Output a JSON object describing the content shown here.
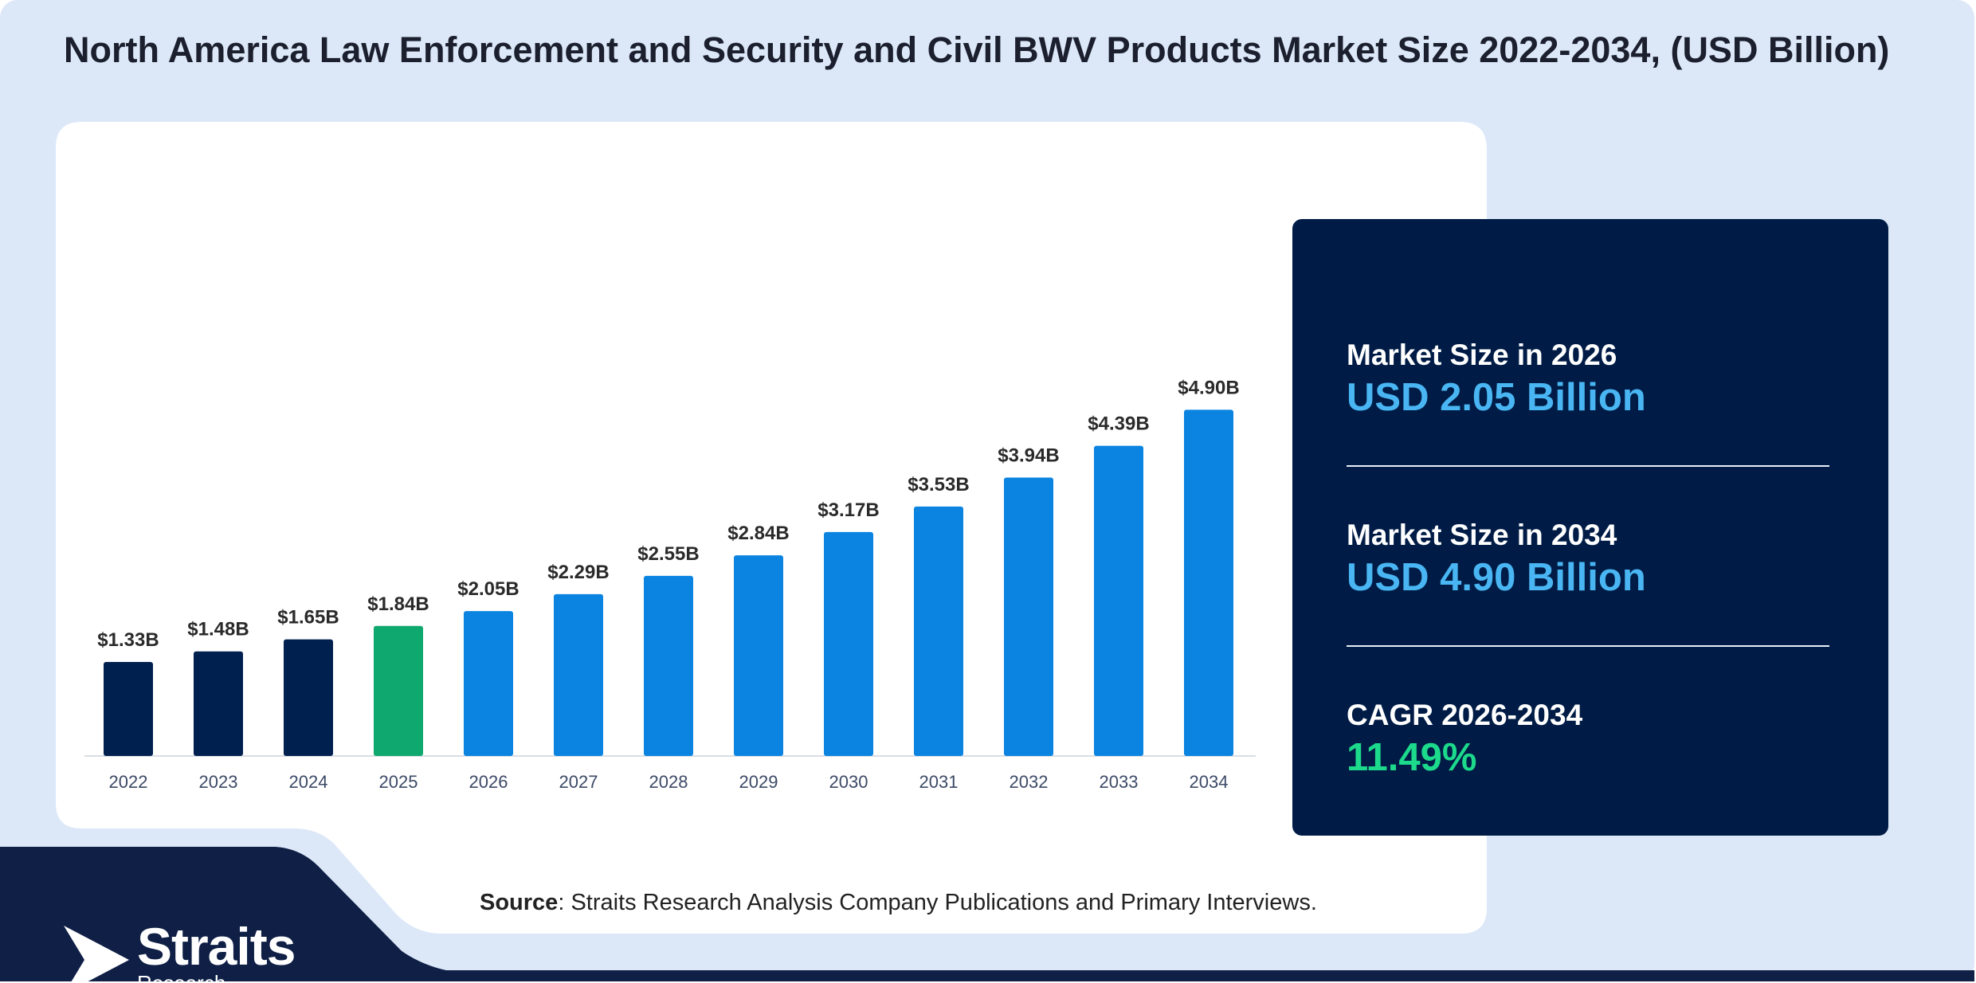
{
  "title": "North America Law Enforcement and Security and Civil BWV Products Market Size 2022-2034, (USD Billion)",
  "chart_data": {
    "type": "bar",
    "title": "North America Law Enforcement and Security and Civil BWV Products Market Size 2022-2034, (USD Billion)",
    "categories": [
      "2022",
      "2023",
      "2024",
      "2025",
      "2026",
      "2027",
      "2028",
      "2029",
      "2030",
      "2031",
      "2032",
      "2033",
      "2034"
    ],
    "values": [
      1.33,
      1.48,
      1.65,
      1.84,
      2.05,
      2.29,
      2.55,
      2.84,
      3.17,
      3.53,
      3.94,
      4.39,
      4.9
    ],
    "data_labels": [
      "$1.33B",
      "$1.48B",
      "$1.65B",
      "$1.84B",
      "$2.05B",
      "$2.29B",
      "$2.55B",
      "$2.84B",
      "$3.17B",
      "$3.53B",
      "$3.94B",
      "$4.39B",
      "$4.90B"
    ],
    "bar_colors": [
      "#00204f",
      "#00204f",
      "#00204f",
      "#0fa86e",
      "#0a84e0",
      "#0a84e0",
      "#0a84e0",
      "#0a84e0",
      "#0a84e0",
      "#0a84e0",
      "#0a84e0",
      "#0a84e0",
      "#0a84e0"
    ],
    "xlabel": "",
    "ylabel": "",
    "ylim": [
      0,
      5.5
    ],
    "grid": false,
    "legend": "none"
  },
  "panel": {
    "stat1_label": "Market Size in 2026",
    "stat1_value": "USD 2.05 Billion",
    "stat2_label": "Market Size in 2034",
    "stat2_value": "USD 4.90 Billion",
    "stat3_label": "CAGR 2026-2034",
    "stat3_value": "11.49%"
  },
  "source": {
    "label": "Source",
    "text": ": Straits Research Analysis Company Publications and Primary Interviews."
  },
  "logo": {
    "name": "Straits",
    "sub": "Research"
  },
  "colors": {
    "page_bg": "#dce8f8",
    "footer_navy": "#0f1f45",
    "panel_bg": "#001c46",
    "historic_bar": "#00204f",
    "base_year_bar": "#0fa86e",
    "forecast_bar": "#0a84e0",
    "stat_value_blue": "#49b6f3",
    "stat_value_green": "#1cd98b"
  }
}
